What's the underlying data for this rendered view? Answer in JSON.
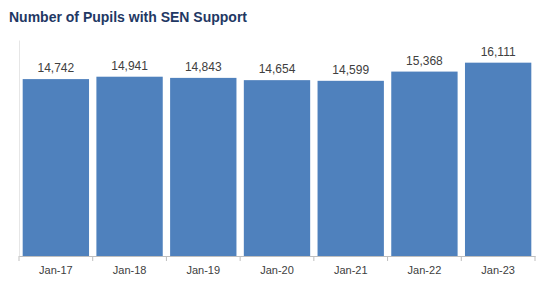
{
  "chart_data": {
    "type": "bar",
    "title": "Number of Pupils with SEN Support",
    "categories": [
      "Jan-17",
      "Jan-18",
      "Jan-19",
      "Jan-20",
      "Jan-21",
      "Jan-22",
      "Jan-23"
    ],
    "values": [
      14742,
      14941,
      14843,
      14654,
      14599,
      15368,
      16111
    ],
    "value_labels": [
      "14,742",
      "14,941",
      "14,843",
      "14,654",
      "14,599",
      "15,368",
      "16,111"
    ],
    "color": "#4f81bd",
    "ylim": [
      0,
      18000
    ],
    "data_labels": true,
    "tick_labels": "x"
  }
}
